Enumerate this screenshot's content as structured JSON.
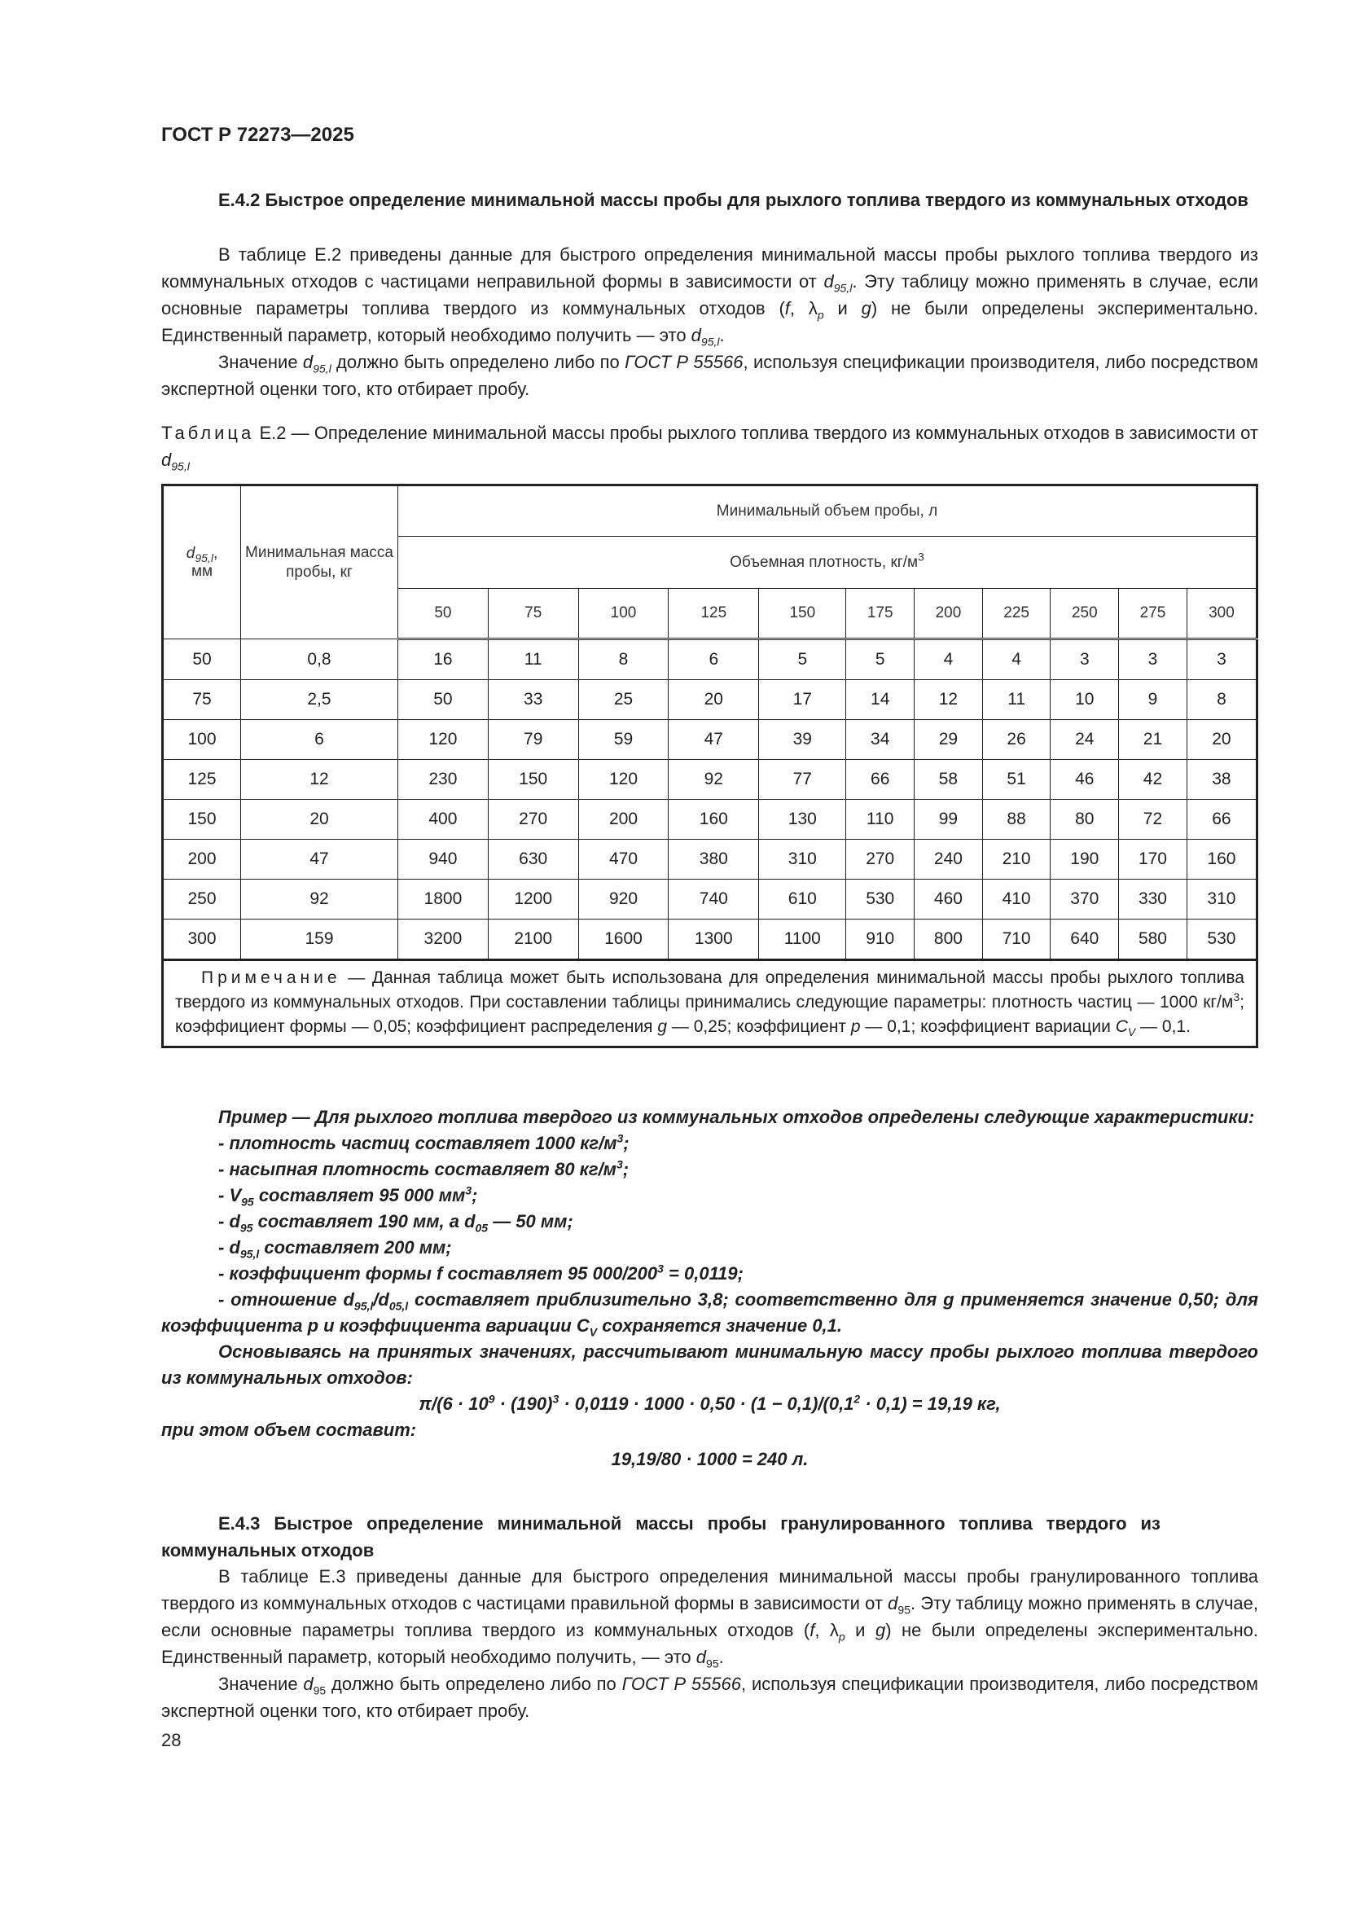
{
  "header": {
    "doc_title": "ГОСТ Р 72273—2025"
  },
  "section_e42": {
    "heading": "Е.4.2 Быстрое определение минимальной массы пробы для рыхлого топлива твердого из коммунальных отходов",
    "para1": [
      {
        "t": "В таблице Е.2 приведены данные для быстрого определения минимальной массы пробы рыхлого топлива твердого из коммунальных отходов с частицами неправильной формы в зависимости от "
      },
      {
        "t": "d",
        "i": true
      },
      {
        "t": "95,l",
        "s": "sub",
        "i": true
      },
      {
        "t": ". Эту таблицу можно применять в случае, если основные параметры топлива твердого из коммунальных отходов ("
      },
      {
        "t": "f",
        "i": true
      },
      {
        "t": ", λ"
      },
      {
        "t": "p",
        "s": "sub",
        "i": true
      },
      {
        "t": " и "
      },
      {
        "t": "g",
        "i": true
      },
      {
        "t": ") не были определены экспериментально. Единственный параметр, который необходимо получить — это "
      },
      {
        "t": "d",
        "i": true
      },
      {
        "t": "95,l",
        "s": "sub",
        "i": true
      },
      {
        "t": "."
      }
    ],
    "para2": [
      {
        "t": "Значение "
      },
      {
        "t": "d",
        "i": true
      },
      {
        "t": "95,l",
        "s": "sub",
        "i": true
      },
      {
        "t": " должно быть определено либо по "
      },
      {
        "t": "ГОСТ Р 55566",
        "i": true
      },
      {
        "t": ", используя спецификации производителя, либо посредством экспертной оценки того, кто отбирает пробу."
      }
    ]
  },
  "table_e2": {
    "caption_label": "Таблица",
    "caption": [
      {
        "t": " Е.2 — Определение минимальной массы пробы рыхлого топлива твердого из коммунальных отходов в зависимости от "
      },
      {
        "t": "d",
        "i": true
      },
      {
        "t": "95,l",
        "s": "sub",
        "i": true
      }
    ],
    "col1_header": [
      {
        "t": "d",
        "i": true
      },
      {
        "t": "95,l",
        "s": "sub",
        "i": true
      },
      {
        "t": ","
      },
      {
        "t": "мм",
        "br": true
      }
    ],
    "col2_header": "Минимальная масса пробы, кг",
    "group_header": "Минимальный объем пробы, л",
    "subgroup_header": [
      {
        "t": "Объемная плотность, кг/м"
      },
      {
        "t": "3",
        "s": "sup"
      }
    ],
    "densities": [
      "50",
      "75",
      "100",
      "125",
      "150",
      "175",
      "200",
      "225",
      "250",
      "275",
      "300"
    ],
    "rows": [
      {
        "d": "50",
        "mass": "0,8",
        "v": [
          "16",
          "11",
          "8",
          "6",
          "5",
          "5",
          "4",
          "4",
          "3",
          "3",
          "3"
        ]
      },
      {
        "d": "75",
        "mass": "2,5",
        "v": [
          "50",
          "33",
          "25",
          "20",
          "17",
          "14",
          "12",
          "11",
          "10",
          "9",
          "8"
        ]
      },
      {
        "d": "100",
        "mass": "6",
        "v": [
          "120",
          "79",
          "59",
          "47",
          "39",
          "34",
          "29",
          "26",
          "24",
          "21",
          "20"
        ]
      },
      {
        "d": "125",
        "mass": "12",
        "v": [
          "230",
          "150",
          "120",
          "92",
          "77",
          "66",
          "58",
          "51",
          "46",
          "42",
          "38"
        ]
      },
      {
        "d": "150",
        "mass": "20",
        "v": [
          "400",
          "270",
          "200",
          "160",
          "130",
          "110",
          "99",
          "88",
          "80",
          "72",
          "66"
        ]
      },
      {
        "d": "200",
        "mass": "47",
        "v": [
          "940",
          "630",
          "470",
          "380",
          "310",
          "270",
          "240",
          "210",
          "190",
          "170",
          "160"
        ]
      },
      {
        "d": "250",
        "mass": "92",
        "v": [
          "1800",
          "1200",
          "920",
          "740",
          "610",
          "530",
          "460",
          "410",
          "370",
          "330",
          "310"
        ]
      },
      {
        "d": "300",
        "mass": "159",
        "v": [
          "3200",
          "2100",
          "1600",
          "1300",
          "1100",
          "910",
          "800",
          "710",
          "640",
          "580",
          "530"
        ]
      }
    ],
    "note_label": "Примечание",
    "note": [
      {
        "t": " — Данная таблица может быть использована для определения минимальной массы пробы рыхлого топлива твердого из коммунальных отходов. При составлении таблицы принимались следующие параметры: плотность частиц — 1000 кг/м"
      },
      {
        "t": "3",
        "s": "sup"
      },
      {
        "t": "; коэффициент формы — 0,05; коэффициент распределения "
      },
      {
        "t": "g",
        "i": true
      },
      {
        "t": " — 0,25; коэффициент "
      },
      {
        "t": "p",
        "i": true
      },
      {
        "t": " — 0,1; коэффициент вариации "
      },
      {
        "t": "C",
        "i": true
      },
      {
        "t": "V",
        "s": "sub",
        "i": true
      },
      {
        "t": " — 0,1."
      }
    ]
  },
  "example": {
    "intro": "Пример — Для рыхлого топлива твердого из коммунальных отходов определены следующие характеристики:",
    "items": [
      [
        {
          "t": "- плотность частиц составляет 1000 кг/м"
        },
        {
          "t": "3",
          "s": "sup"
        },
        {
          "t": ";"
        }
      ],
      [
        {
          "t": "- насыпная плотность составляет 80 кг/м"
        },
        {
          "t": "3",
          "s": "sup"
        },
        {
          "t": ";"
        }
      ],
      [
        {
          "t": "- V"
        },
        {
          "t": "95",
          "s": "sub"
        },
        {
          "t": " составляет 95 000 мм"
        },
        {
          "t": "3",
          "s": "sup"
        },
        {
          "t": ";"
        }
      ],
      [
        {
          "t": "- d"
        },
        {
          "t": "95",
          "s": "sub"
        },
        {
          "t": " составляет 190 мм, а d"
        },
        {
          "t": "05",
          "s": "sub"
        },
        {
          "t": " — 50 мм;"
        }
      ],
      [
        {
          "t": "- d"
        },
        {
          "t": "95,l",
          "s": "sub"
        },
        {
          "t": " составляет 200 мм;"
        }
      ],
      [
        {
          "t": "- коэффициент формы f составляет 95 000/200"
        },
        {
          "t": "3",
          "s": "sup"
        },
        {
          "t": " = 0,0119;"
        }
      ],
      [
        {
          "t": "- отношение d"
        },
        {
          "t": "95,l",
          "s": "sub"
        },
        {
          "t": "/d"
        },
        {
          "t": "05,l",
          "s": "sub"
        },
        {
          "t": " составляет приблизительно 3,8; соответственно для g применяется значение 0,50; для коэффициента p и коэффициента вариации C"
        },
        {
          "t": "V",
          "s": "sub"
        },
        {
          "t": " сохраняется значение 0,1."
        }
      ]
    ],
    "calc_intro": "Основываясь на принятых значениях, рассчитывают минимальную массу пробы рыхлого топлива твердого из коммунальных отходов:",
    "formula1": [
      {
        "t": "π/(6 · 10"
      },
      {
        "t": "9",
        "s": "sup"
      },
      {
        "t": " · (190)"
      },
      {
        "t": "3",
        "s": "sup"
      },
      {
        "t": " · 0,0119 · 1000 · 0,50 · (1 − 0,1)/(0,1"
      },
      {
        "t": "2",
        "s": "sup"
      },
      {
        "t": " · 0,1) = 19,19 кг,"
      }
    ],
    "volume_intro": "при этом объем составит:",
    "formula2": "19,19/80 · 1000 = 240 л."
  },
  "section_e43": {
    "heading": "Е.4.3 Быстрое определение минимальной массы пробы гранулированного топлива твердого из коммунальных отходов",
    "para1": [
      {
        "t": "В таблице Е.3 приведены данные для быстрого определения минимальной массы пробы гранулированного топлива твердого из коммунальных отходов с частицами правильной формы в зависимости от "
      },
      {
        "t": "d",
        "i": true
      },
      {
        "t": "95",
        "s": "sub"
      },
      {
        "t": ". Эту таблицу можно применять в случае, если основные параметры топлива твердого из коммунальных отходов ("
      },
      {
        "t": "f",
        "i": true
      },
      {
        "t": ", λ"
      },
      {
        "t": "p",
        "s": "sub",
        "i": true
      },
      {
        "t": " и "
      },
      {
        "t": "g",
        "i": true
      },
      {
        "t": ") не были определены экспериментально. Единственный параметр, который необходимо получить, — это "
      },
      {
        "t": "d",
        "i": true
      },
      {
        "t": "95",
        "s": "sub"
      },
      {
        "t": "."
      }
    ],
    "para2": [
      {
        "t": "Значение "
      },
      {
        "t": "d",
        "i": true
      },
      {
        "t": "95",
        "s": "sub"
      },
      {
        "t": " должно быть определено либо по "
      },
      {
        "t": "ГОСТ Р 55566",
        "i": true
      },
      {
        "t": ", используя спецификации производителя, либо посредством экспертной оценки того, кто отбирает пробу."
      }
    ]
  },
  "footer": {
    "page_number": "28"
  }
}
